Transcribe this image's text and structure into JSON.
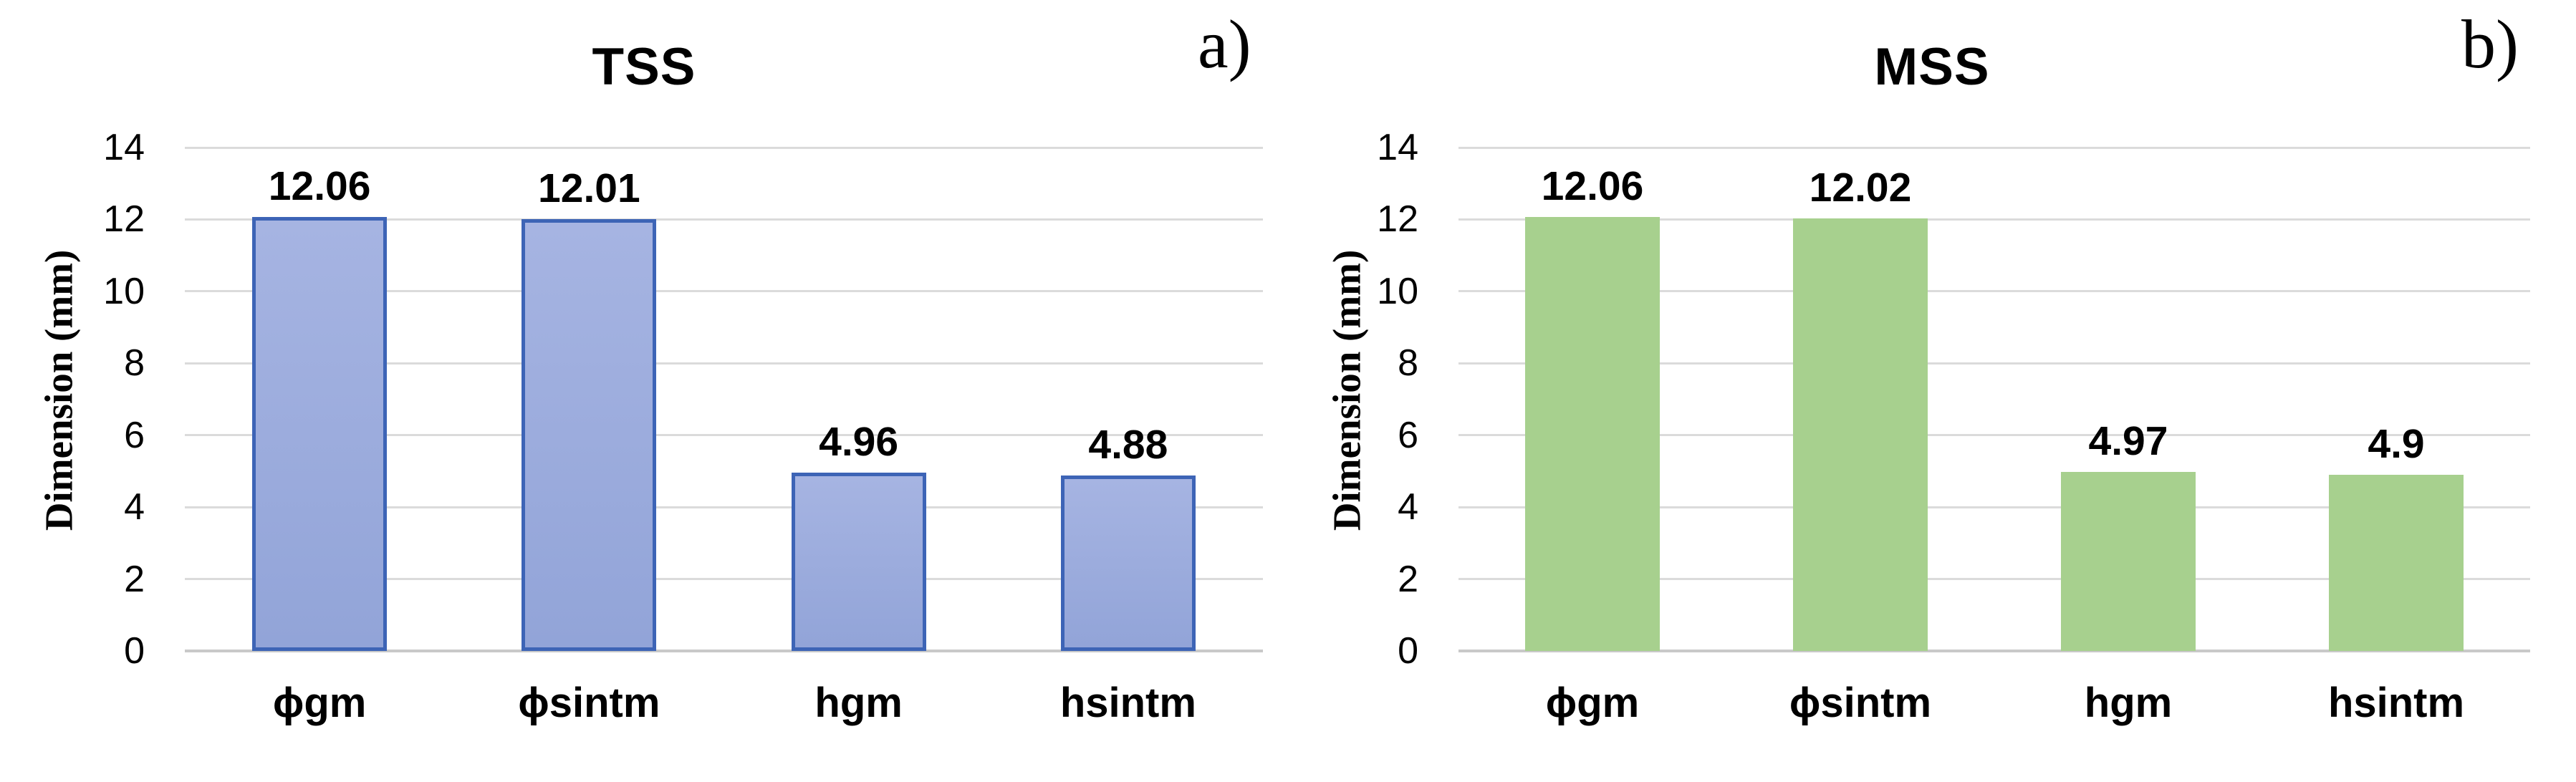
{
  "figure": {
    "background": "#ffffff",
    "description_visible_text_only": "Two side-by-side bar charts comparing dimensions"
  },
  "chart_data": [
    {
      "type": "bar",
      "title": "TSS",
      "panel_label": "a)",
      "xlabel": "",
      "ylabel": "Dimension (mm)",
      "categories": [
        "ϕgm",
        "ϕsintm",
        "hgm",
        "hsintm"
      ],
      "values": [
        12.06,
        12.01,
        4.96,
        4.88
      ],
      "data_labels": [
        "12.06",
        "12.01",
        "4.96",
        "4.88"
      ],
      "ylim": [
        0,
        14
      ],
      "yticks": [
        0,
        2,
        4,
        6,
        8,
        10,
        12,
        14
      ],
      "grid": "horizontal",
      "legend": "none",
      "colors": {
        "bar_fill": "#9CACDD",
        "bar_fill_top": "#A6B4E2",
        "bar_fill_bottom": "#92A4D8",
        "bar_border": "#3D64B6",
        "gridline": "#DBDBDB",
        "axis_line": "#C9C9C9",
        "text": "#000000"
      }
    },
    {
      "type": "bar",
      "title": "MSS",
      "panel_label": "b)",
      "xlabel": "",
      "ylabel": "Dimension (mm)",
      "categories": [
        "ϕgm",
        "ϕsintm",
        "hgm",
        "hsintm"
      ],
      "values": [
        12.06,
        12.02,
        4.97,
        4.9
      ],
      "data_labels": [
        "12.06",
        "12.02",
        "4.97",
        "4.9"
      ],
      "ylim": [
        0,
        14
      ],
      "yticks": [
        0,
        2,
        4,
        6,
        8,
        10,
        12,
        14
      ],
      "grid": "horizontal",
      "legend": "none",
      "colors": {
        "bar_fill": "#A7D08E",
        "bar_fill_top": "#A7D08E",
        "bar_fill_bottom": "#A7D08E",
        "bar_border": "none",
        "gridline": "#DBDBDB",
        "axis_line": "#C9C9C9",
        "text": "#000000"
      }
    }
  ]
}
